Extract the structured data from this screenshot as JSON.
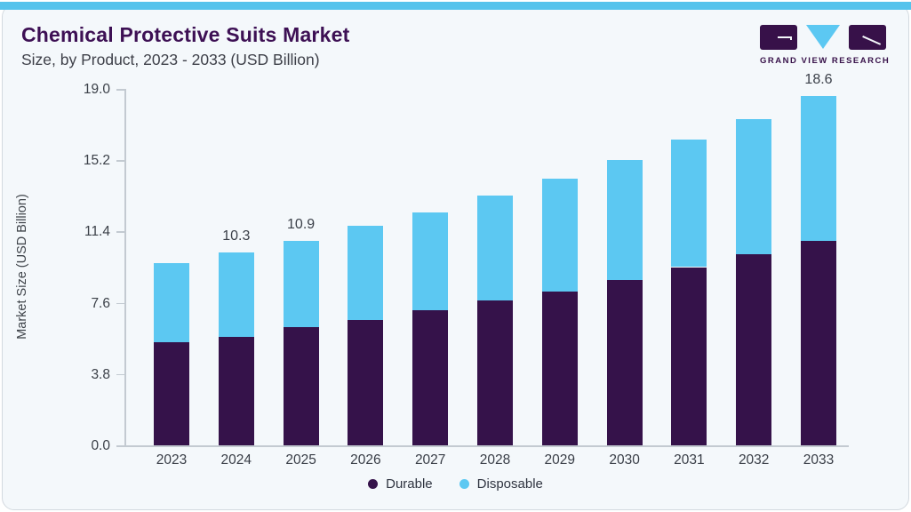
{
  "header": {
    "title": "Chemical Protective Suits Market",
    "subtitle": "Size, by Product, 2023 - 2033 (USD Billion)"
  },
  "logo": {
    "text": "GRAND VIEW RESEARCH",
    "purple": "#371149",
    "blue": "#5cc8f2"
  },
  "colors": {
    "accent_strip": "#55c3ec",
    "title_text": "#3d1054",
    "card_background": "#f4f8fb",
    "axis_line": "#c3cad1"
  },
  "chart_data": {
    "type": "bar",
    "stacked": true,
    "title": "Chemical Protective Suits Market",
    "subtitle": "Size, by Product, 2023 - 2033 (USD Billion)",
    "ylabel": "Market Size (USD Billion)",
    "xlabel": "",
    "ylim": [
      0,
      19.0
    ],
    "yticks": [
      "0.0",
      "3.8",
      "7.6",
      "11.4",
      "15.2",
      "19.0"
    ],
    "grid": false,
    "legend_position": "bottom",
    "categories": [
      "2023",
      "2024",
      "2025",
      "2026",
      "2027",
      "2028",
      "2029",
      "2030",
      "2031",
      "2032",
      "2033"
    ],
    "series": [
      {
        "name": "Durable",
        "color": "#35124a",
        "values": [
          5.5,
          5.8,
          6.3,
          6.7,
          7.2,
          7.7,
          8.2,
          8.8,
          9.5,
          10.2,
          10.9
        ]
      },
      {
        "name": "Disposable",
        "color": "#5cc8f2",
        "values": [
          4.2,
          4.5,
          4.6,
          5.0,
          5.2,
          5.6,
          6.0,
          6.4,
          6.8,
          7.2,
          7.7
        ]
      }
    ],
    "totals": [
      9.7,
      10.3,
      10.9,
      11.7,
      12.4,
      13.3,
      14.2,
      15.2,
      16.3,
      17.4,
      18.6
    ],
    "bar_labels": {
      "2024": "10.3",
      "2025": "10.9",
      "2033": "18.6"
    }
  },
  "legend": {
    "items": [
      {
        "label": "Durable",
        "color": "#35124a"
      },
      {
        "label": "Disposable",
        "color": "#5cc8f2"
      }
    ]
  }
}
